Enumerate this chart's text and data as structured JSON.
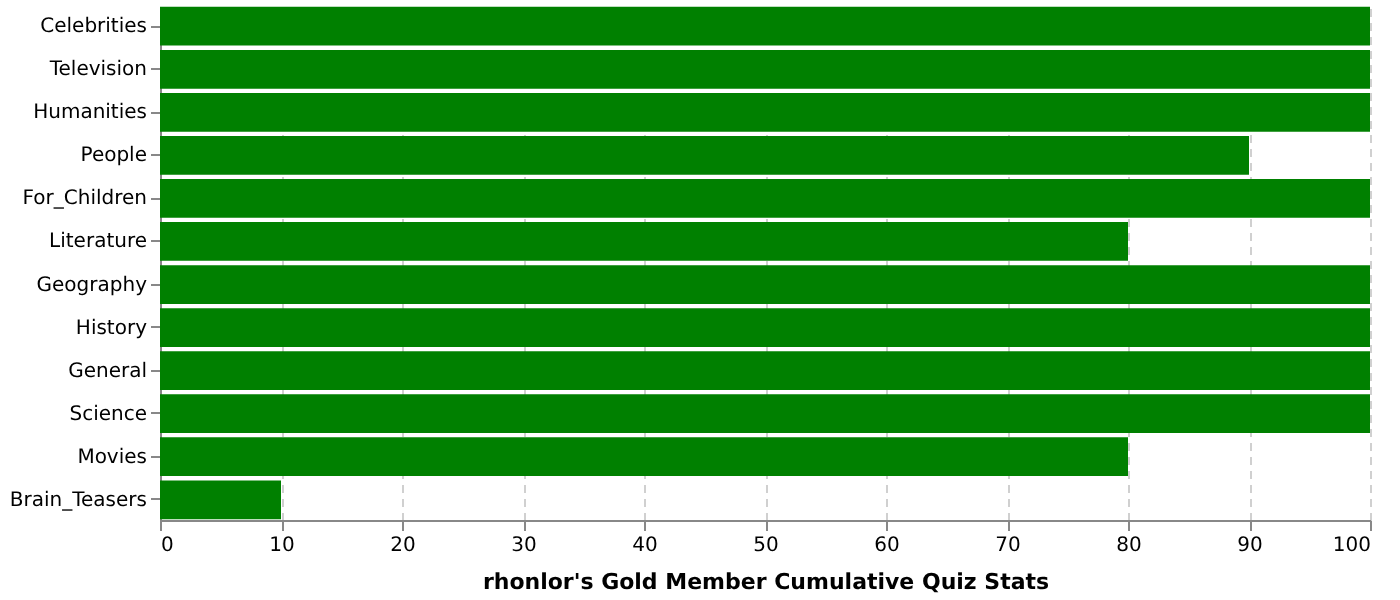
{
  "chart_data": {
    "type": "bar",
    "orientation": "horizontal",
    "xlabel": "rhonlor's Gold Member Cumulative Quiz Stats",
    "categories": [
      "Celebrities",
      "Television",
      "Humanities",
      "People",
      "For_Children",
      "Literature",
      "Geography",
      "History",
      "General",
      "Science",
      "Movies",
      "Brain_Teasers"
    ],
    "values": [
      100,
      100,
      100,
      90,
      100,
      80,
      100,
      100,
      100,
      100,
      80,
      10
    ],
    "color": "#008000",
    "xlim": [
      0,
      100
    ],
    "xticks": [
      0,
      10,
      20,
      30,
      40,
      50,
      60,
      70,
      80,
      90,
      100
    ],
    "grid": "x"
  }
}
